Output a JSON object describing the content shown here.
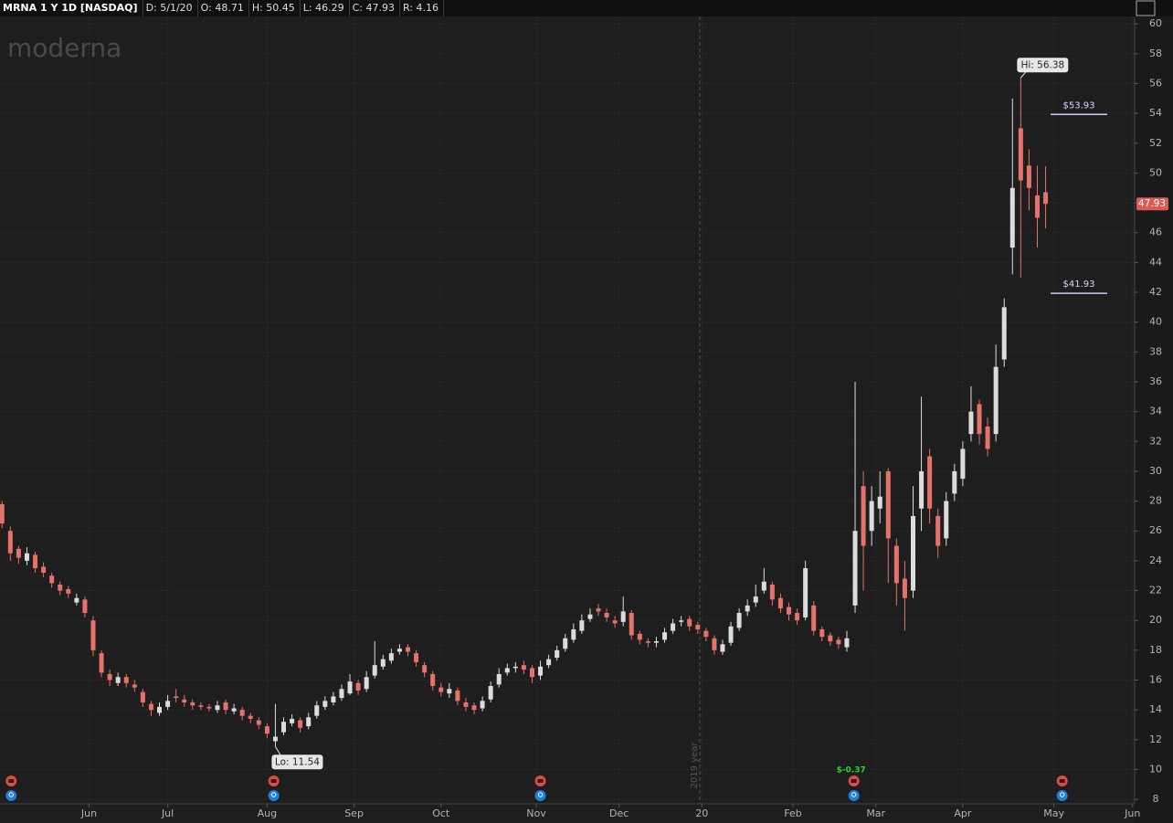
{
  "header": {
    "symbol": "MRNA 1 Y 1D [NASDAQ]",
    "fields": [
      "D: 5/1/20",
      "O: 48.71",
      "H: 50.45",
      "L: 46.29",
      "C: 47.93",
      "R: 4.16"
    ]
  },
  "chart_data": {
    "type": "candlestick",
    "watermark": "moderna",
    "x": [
      0,
      2,
      4,
      6,
      8,
      10,
      12,
      14,
      16,
      18,
      20,
      22,
      24,
      26,
      28,
      30,
      32,
      34,
      36,
      38,
      40,
      42,
      44,
      46,
      48,
      50,
      52,
      54,
      56,
      58,
      60,
      62,
      64,
      66,
      68,
      70,
      72,
      74,
      76,
      78,
      80,
      82,
      84,
      86,
      88,
      90,
      92,
      94,
      96,
      98,
      100,
      102,
      104,
      106,
      108,
      110,
      112,
      114,
      116,
      118,
      120,
      122,
      124,
      126,
      128,
      130,
      132,
      134,
      136,
      138,
      140,
      142,
      144,
      146,
      148,
      150,
      152,
      154,
      156,
      158,
      160,
      162,
      164,
      166,
      168,
      170,
      172,
      174,
      176,
      178,
      180,
      182,
      184,
      186,
      188,
      190,
      192,
      194,
      196,
      198,
      200,
      202,
      204,
      206,
      208,
      210,
      212,
      214,
      216,
      218,
      220,
      222,
      224,
      226,
      228,
      230,
      232,
      234,
      236,
      238,
      240,
      242,
      244,
      246,
      248,
      250,
      252
    ],
    "open": [
      27.8,
      26.0,
      24.8,
      24.0,
      24.4,
      23.6,
      23.0,
      22.4,
      22.1,
      21.2,
      21.4,
      20.0,
      17.8,
      16.4,
      15.8,
      16.2,
      15.7,
      15.2,
      14.4,
      13.8,
      14.2,
      14.9,
      14.7,
      14.5,
      14.3,
      14.2,
      14.0,
      14.5,
      13.9,
      14.0,
      13.6,
      13.3,
      12.9,
      11.9,
      12.5,
      13.1,
      13.3,
      12.9,
      13.6,
      14.2,
      14.5,
      14.8,
      15.1,
      15.8,
      15.4,
      16.3,
      16.9,
      17.3,
      17.9,
      18.2,
      17.8,
      17.0,
      16.4,
      15.5,
      15.1,
      15.3,
      14.5,
      14.3,
      14.1,
      14.7,
      15.7,
      16.5,
      16.8,
      17.0,
      16.8,
      16.3,
      17.0,
      17.5,
      18.1,
      18.7,
      19.3,
      20.1,
      20.8,
      20.5,
      20.0,
      19.9,
      20.5,
      19.1,
      18.6,
      18.5,
      18.7,
      19.3,
      19.9,
      20.1,
      19.7,
      19.3,
      18.8,
      17.9,
      18.5,
      19.5,
      20.6,
      21.2,
      22.0,
      22.4,
      21.5,
      20.9,
      20.5,
      20.2,
      21.0,
      19.4,
      19.0,
      18.7,
      18.2,
      21.0,
      29.0,
      26.0,
      27.5,
      30.0,
      25.0,
      22.8,
      22.0,
      27.5,
      31.0,
      27.0,
      25.5,
      28.5,
      29.5,
      32.5,
      34.5,
      33.0,
      32.5,
      37.5,
      45.0,
      53.0,
      50.5,
      48.5,
      48.71
    ],
    "high": [
      28.0,
      26.3,
      25.0,
      24.9,
      24.6,
      23.9,
      23.2,
      22.6,
      22.3,
      21.8,
      21.6,
      20.3,
      18.0,
      16.7,
      16.5,
      16.4,
      16.0,
      15.4,
      14.6,
      14.5,
      15.0,
      15.4,
      15.0,
      14.7,
      14.5,
      14.4,
      14.6,
      14.7,
      14.4,
      14.2,
      13.8,
      13.5,
      13.1,
      14.4,
      13.5,
      13.7,
      13.5,
      13.8,
      14.6,
      14.9,
      15.2,
      15.7,
      16.4,
      16.0,
      16.6,
      18.6,
      17.7,
      18.1,
      18.4,
      18.4,
      18.0,
      17.2,
      16.6,
      15.8,
      15.8,
      15.5,
      14.8,
      14.5,
      14.9,
      15.9,
      16.8,
      17.1,
      17.2,
      17.3,
      17.0,
      17.3,
      17.7,
      18.3,
      19.1,
      19.8,
      20.4,
      20.8,
      21.1,
      20.8,
      20.3,
      21.6,
      20.7,
      19.3,
      18.8,
      18.9,
      19.5,
      20.1,
      20.3,
      20.3,
      19.9,
      19.5,
      19.0,
      18.7,
      19.9,
      20.8,
      21.4,
      22.4,
      23.5,
      22.6,
      21.8,
      21.2,
      20.8,
      24.0,
      21.3,
      19.6,
      19.2,
      18.9,
      19.3,
      36.0,
      30.0,
      29.0,
      30.0,
      30.2,
      25.5,
      24.0,
      29.0,
      35.0,
      31.5,
      27.5,
      28.6,
      30.5,
      32.0,
      35.7,
      34.8,
      33.6,
      38.5,
      41.6,
      55.0,
      56.38,
      51.6,
      50.5,
      50.45
    ],
    "low": [
      26.2,
      24.0,
      23.8,
      23.7,
      23.2,
      22.9,
      22.2,
      21.7,
      21.5,
      21.0,
      20.2,
      17.6,
      16.2,
      15.6,
      15.6,
      15.5,
      15.2,
      14.2,
      13.6,
      13.6,
      14.0,
      14.5,
      14.2,
      14.0,
      14.0,
      13.9,
      13.8,
      13.7,
      13.7,
      13.3,
      13.1,
      12.7,
      12.1,
      11.54,
      12.3,
      12.9,
      12.5,
      12.7,
      13.4,
      14.0,
      14.3,
      14.6,
      15.0,
      15.0,
      15.2,
      16.1,
      16.7,
      17.1,
      17.7,
      17.6,
      16.9,
      16.2,
      15.3,
      14.9,
      14.8,
      14.3,
      13.9,
      13.7,
      13.9,
      14.5,
      15.5,
      16.3,
      16.5,
      16.4,
      15.8,
      16.0,
      16.8,
      17.3,
      17.9,
      18.5,
      19.1,
      19.9,
      20.3,
      19.9,
      19.5,
      19.6,
      18.7,
      18.4,
      18.2,
      18.2,
      18.5,
      19.1,
      19.6,
      19.3,
      19.1,
      18.6,
      17.7,
      17.7,
      18.3,
      19.3,
      20.3,
      20.9,
      21.8,
      21.0,
      20.5,
      20.0,
      19.7,
      20.0,
      19.0,
      18.6,
      18.3,
      18.1,
      17.9,
      20.5,
      22.0,
      25.0,
      26.5,
      22.5,
      21.0,
      19.3,
      21.5,
      26.0,
      26.5,
      24.2,
      25.0,
      28.0,
      29.0,
      32.0,
      31.8,
      31.0,
      32.0,
      37.0,
      43.2,
      43.0,
      47.5,
      45.0,
      46.29
    ],
    "close": [
      26.5,
      24.5,
      24.2,
      24.5,
      23.5,
      23.2,
      22.5,
      22.0,
      21.8,
      21.5,
      20.5,
      18.0,
      16.5,
      16.0,
      16.2,
      15.8,
      15.5,
      14.5,
      14.0,
      14.2,
      14.6,
      14.8,
      14.5,
      14.3,
      14.2,
      14.1,
      14.3,
      14.0,
      14.1,
      13.6,
      13.4,
      13.0,
      12.4,
      12.2,
      13.2,
      13.4,
      12.8,
      13.5,
      14.3,
      14.6,
      14.9,
      15.4,
      15.9,
      15.3,
      16.2,
      17.0,
      17.4,
      17.8,
      18.1,
      17.9,
      17.2,
      16.5,
      15.6,
      15.2,
      15.4,
      14.6,
      14.2,
      14.0,
      14.6,
      15.6,
      16.4,
      16.8,
      16.9,
      16.7,
      16.2,
      16.9,
      17.4,
      18.0,
      18.8,
      19.4,
      20.0,
      20.4,
      20.6,
      20.2,
      19.8,
      20.6,
      19.0,
      18.7,
      18.5,
      18.6,
      19.2,
      19.8,
      20.0,
      19.6,
      19.4,
      18.9,
      18.0,
      18.4,
      19.6,
      20.5,
      21.0,
      21.6,
      22.6,
      21.4,
      20.8,
      20.4,
      20.0,
      23.5,
      19.3,
      18.9,
      18.6,
      18.4,
      18.8,
      26.0,
      25.0,
      28.0,
      28.3,
      25.5,
      22.5,
      21.5,
      27.0,
      30.0,
      27.5,
      25.0,
      28.0,
      30.0,
      31.5,
      34.0,
      32.5,
      31.5,
      37.0,
      41.0,
      49.0,
      49.5,
      49.0,
      47.0,
      47.93
    ],
    "up_color": "#dcdcdc",
    "down_color": "#e5736b",
    "xlim": [
      -0.5,
      273.5
    ],
    "xticks": [
      {
        "value": 21,
        "label": "Jun"
      },
      {
        "value": 40,
        "label": "Jul"
      },
      {
        "value": 64,
        "label": "Aug"
      },
      {
        "value": 85,
        "label": "Sep"
      },
      {
        "value": 106,
        "label": "Oct"
      },
      {
        "value": 129,
        "label": "Nov"
      },
      {
        "value": 149,
        "label": "Dec"
      },
      {
        "value": 169,
        "label": "20"
      },
      {
        "value": 191,
        "label": "Feb"
      },
      {
        "value": 211,
        "label": "Mar"
      },
      {
        "value": 232,
        "label": "Apr"
      },
      {
        "value": 254,
        "label": "May"
      },
      {
        "value": 273,
        "label": "Jun"
      }
    ],
    "ylim": [
      7.7,
      60.5
    ],
    "yticks": [
      8,
      10,
      12,
      14,
      16,
      18,
      20,
      22,
      24,
      26,
      28,
      30,
      32,
      34,
      36,
      38,
      40,
      42,
      44,
      46,
      48,
      50,
      52,
      54,
      56,
      58,
      60
    ],
    "grid": true,
    "annotations": {
      "high": {
        "x": 246,
        "value": 56.38,
        "label": "Hi: 56.38"
      },
      "low": {
        "x": 66,
        "value": 11.54,
        "label": "Lo: 11.54"
      },
      "last": {
        "value": 47.93,
        "label": "47.93"
      },
      "price_lines": [
        {
          "value": 53.93,
          "label": "$53.93"
        },
        {
          "value": 41.93,
          "label": "$41.93"
        }
      ],
      "separator": {
        "x": 168.5,
        "label": "2019 year"
      },
      "events_x": [
        2.2,
        65.6,
        130,
        205.7,
        256
      ],
      "event_note": {
        "x": 205.7,
        "label": "$-0.37"
      }
    }
  }
}
